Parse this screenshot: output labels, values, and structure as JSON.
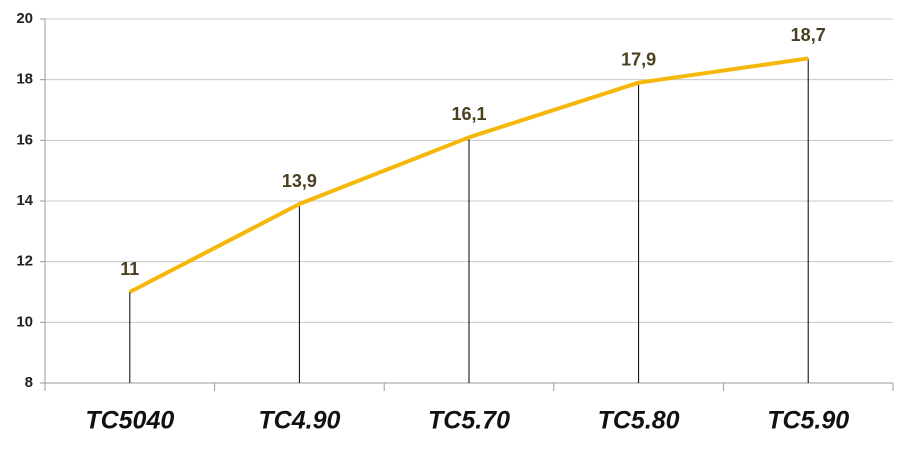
{
  "chart_data": {
    "type": "line",
    "categories": [
      "TC5040",
      "TC4.90",
      "TC5.70",
      "TC5.80",
      "TC5.90"
    ],
    "series": [
      {
        "color": "#f5b80a",
        "values": [
          11,
          13.9,
          16.1,
          17.9,
          18.7
        ],
        "value_labels": [
          "11",
          "13,9",
          "16,1",
          "17,9",
          "18,7"
        ]
      }
    ],
    "ylim": [
      8,
      20
    ],
    "yticks": [
      8,
      10,
      12,
      14,
      16,
      18,
      20
    ],
    "grid": true,
    "drop_lines": true
  }
}
